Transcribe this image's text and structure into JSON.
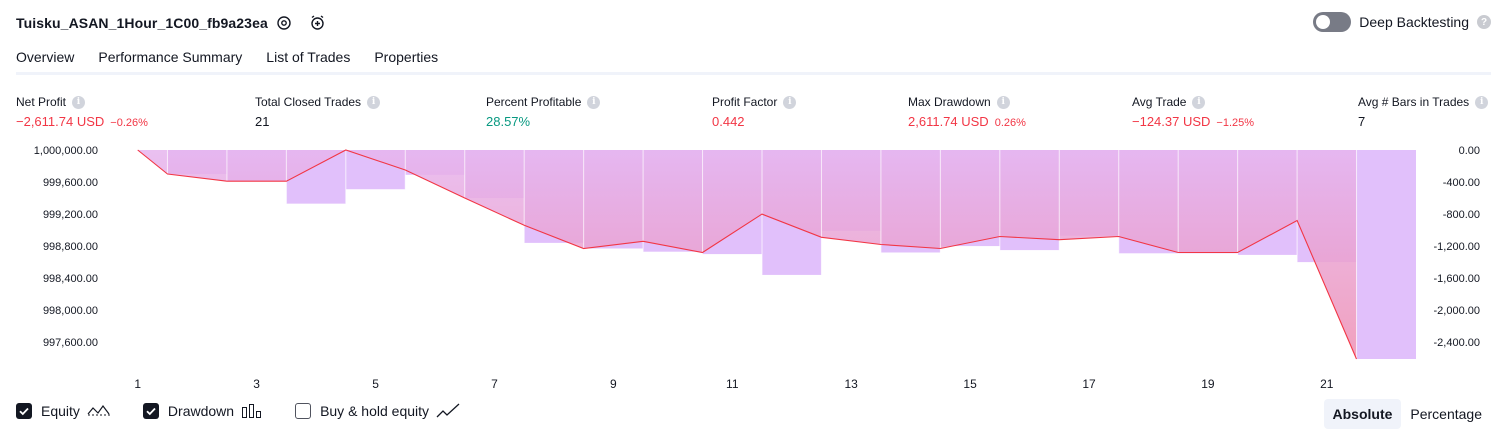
{
  "header": {
    "strategy_title": "Tuisku_ASAN_1Hour_1C00_fb9a23ea",
    "deep_backtesting_label": "Deep Backtesting",
    "deep_backtesting_enabled": false,
    "help_glyph": "?"
  },
  "tabs": [
    {
      "label": "Overview",
      "active": true
    },
    {
      "label": "Performance Summary",
      "active": false
    },
    {
      "label": "List of Trades",
      "active": false
    },
    {
      "label": "Properties",
      "active": false
    }
  ],
  "metrics": [
    {
      "label": "Net Profit",
      "value": "−2,611.74 USD",
      "sub": "−0.26%",
      "tone": "neg"
    },
    {
      "label": "Total Closed Trades",
      "value": "21",
      "sub": "",
      "tone": "neu"
    },
    {
      "label": "Percent Profitable",
      "value": "28.57%",
      "sub": "",
      "tone": "pos"
    },
    {
      "label": "Profit Factor",
      "value": "0.442",
      "sub": "",
      "tone": "neg"
    },
    {
      "label": "Max Drawdown",
      "value": "2,611.74 USD",
      "sub": "0.26%",
      "tone": "neg"
    },
    {
      "label": "Avg Trade",
      "value": "−124.37 USD",
      "sub": "−1.25%",
      "tone": "neg"
    },
    {
      "label": "Avg # Bars in Trades",
      "value": "7",
      "sub": "",
      "tone": "neu"
    }
  ],
  "info_glyph": "i",
  "chart_data": {
    "type": "line",
    "x": [
      1,
      2,
      3,
      4,
      5,
      6,
      7,
      8,
      9,
      10,
      11,
      12,
      13,
      14,
      15,
      16,
      17,
      18,
      19,
      20,
      21,
      22
    ],
    "x_tick_labels": [
      "1",
      "3",
      "5",
      "7",
      "9",
      "11",
      "13",
      "15",
      "17",
      "19",
      "21"
    ],
    "series": [
      {
        "role": "equity",
        "axis": "left",
        "color": "#f23645",
        "values": [
          1000000.0,
          999700.0,
          999610.0,
          999610.0,
          1000000.0,
          999750.0,
          999400.0,
          999060.0,
          998770.0,
          998860.0,
          998720.0,
          999200.0,
          998910.0,
          998820.0,
          998770.0,
          998920.0,
          998880.0,
          998920.0,
          998720.0,
          998720.0,
          999120.0,
          997390.0
        ]
      },
      {
        "role": "drawdown",
        "type": "bar",
        "axis": "right",
        "color": "#e1c0fb",
        "values": [
          0,
          -300,
          -390,
          -670,
          -490,
          -310,
          -600,
          -1160,
          -1230,
          -1270,
          -1300,
          -1560,
          -1010,
          -1280,
          -1200,
          -1250,
          -1070,
          -1290,
          -1290,
          -1310,
          -1400,
          -2610
        ]
      }
    ],
    "y_left": {
      "ticks": [
        "1,000,000.00",
        "999,600.00",
        "999,200.00",
        "998,800.00",
        "998,400.00",
        "998,000.00",
        "997,600.00"
      ],
      "min": 997390,
      "max": 1000000
    },
    "y_right": {
      "ticks": [
        "0.00",
        "-400.00",
        "-800.00",
        "-1,200.00",
        "-1,600.00",
        "-2,000.00",
        "-2,400.00"
      ],
      "min": -2610,
      "max": 0
    },
    "grid": false,
    "area_gradient_colors": [
      "#e6b5ef",
      "#ee8fb2"
    ],
    "buy_hold_color": "#ffd9c7"
  },
  "legend": [
    {
      "label": "Equity",
      "checked": true,
      "icon": "equity-icon"
    },
    {
      "label": "Drawdown",
      "checked": true,
      "icon": "drawdown-icon"
    },
    {
      "label": "Buy & hold equity",
      "checked": false,
      "icon": "buy-hold-icon"
    }
  ],
  "modes": [
    {
      "label": "Absolute",
      "active": true
    },
    {
      "label": "Percentage",
      "active": false
    }
  ]
}
